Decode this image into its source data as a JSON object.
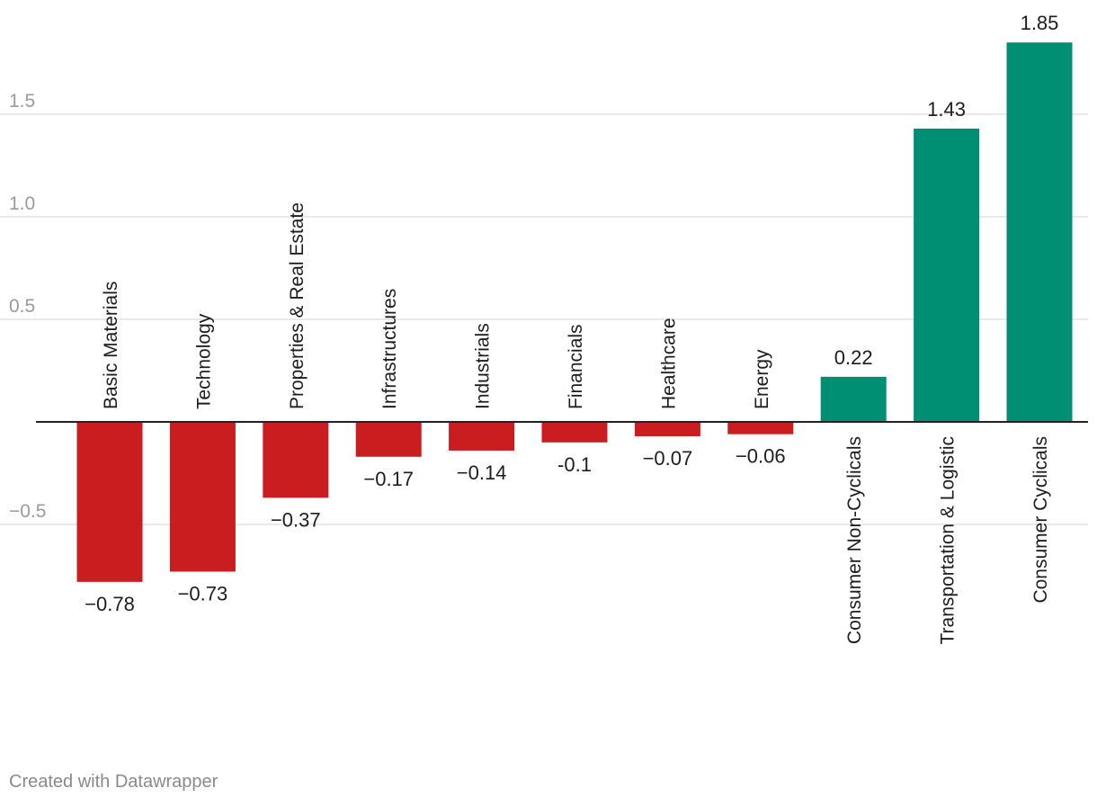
{
  "chart_data": {
    "type": "bar",
    "categories": [
      "Basic Materials",
      "Technology",
      "Properties & Real Estate",
      "Infrastructures",
      "Industrials",
      "Financials",
      "Healthcare",
      "Energy",
      "Consumer Non-Cyclicals",
      "Transportation & Logistic",
      "Consumer Cyclicals"
    ],
    "values": [
      -0.78,
      -0.73,
      -0.37,
      -0.17,
      -0.14,
      -0.1,
      -0.07,
      -0.06,
      0.22,
      1.43,
      1.85
    ],
    "value_labels": [
      "−0.78",
      "−0.73",
      "−0.37",
      "−0.17",
      "−0.14",
      "-0.1",
      "−0.07",
      "−0.06",
      "0.22",
      "1.43",
      "1.85"
    ],
    "yticks": [
      1.5,
      1.0,
      0.5,
      -0.5
    ],
    "ytick_labels": [
      "1.5",
      "1.0",
      "0.5",
      "−0.5"
    ],
    "ylim": [
      -1.1,
      2.05
    ],
    "grid": true,
    "colors": {
      "negative": "#c91d1f",
      "positive": "#008f72",
      "grid": "#e2e2e2",
      "zero_line": "#222222",
      "tick_text": "#9a9a9a",
      "label_text": "#1d1d1d"
    }
  },
  "credit": "Created with Datawrapper"
}
